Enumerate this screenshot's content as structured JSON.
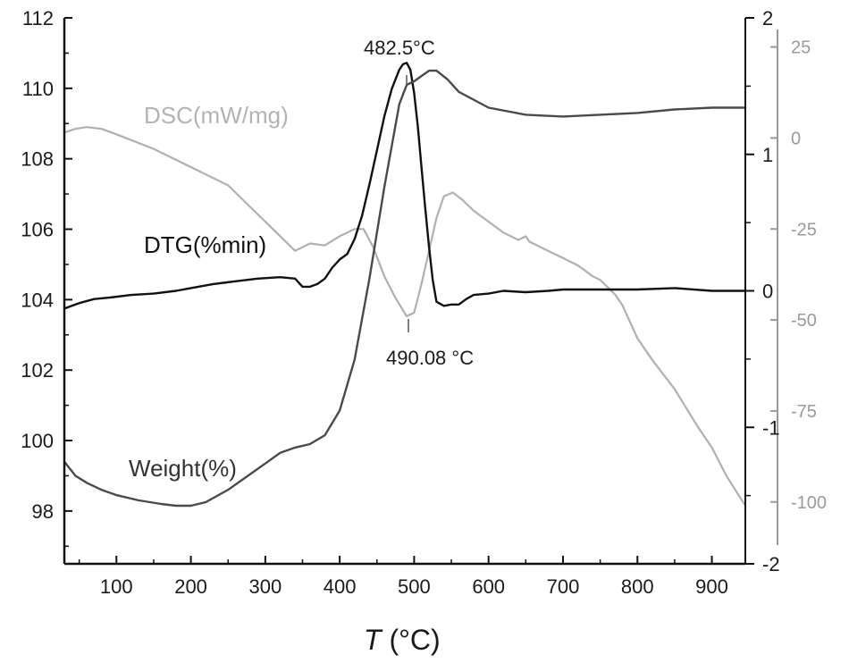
{
  "chart_data": {
    "type": "line",
    "x_axis": {
      "label_italic": "T",
      "label_rest": " (°C)",
      "range": [
        30,
        945
      ],
      "ticks": [
        100,
        200,
        300,
        400,
        500,
        600,
        700,
        800,
        900
      ],
      "tick_labels": [
        "100",
        "200",
        "300",
        "400",
        "500",
        "600",
        "700",
        "800",
        "900"
      ]
    },
    "axes": {
      "left": {
        "range": [
          96.5,
          112
        ],
        "ticks": [
          98,
          100,
          102,
          104,
          106,
          108,
          110,
          112
        ],
        "tick_labels": [
          "98",
          "100",
          "102",
          "104",
          "106",
          "108",
          "110",
          "112"
        ],
        "color": "#1a1a1a"
      },
      "right": {
        "range": [
          -2,
          2
        ],
        "ticks": [
          -2,
          -1,
          0,
          1,
          2
        ],
        "tick_labels": [
          "-2",
          "-1",
          "0",
          "1",
          "2"
        ],
        "color": "#1a1a1a"
      },
      "far_right": {
        "range": [
          -117,
          33
        ],
        "ticks": [
          -100,
          -75,
          -50,
          -25,
          0,
          25
        ],
        "tick_labels": [
          "-100",
          "-75",
          "-50",
          "-25",
          "0",
          "25"
        ],
        "color": "#9a9a9a"
      }
    },
    "series": [
      {
        "name": "DSC(mW/mg)",
        "axis": "far_right",
        "color": "#b0b0b0",
        "x": [
          30,
          45,
          60,
          80,
          100,
          150,
          200,
          250,
          300,
          340,
          360,
          380,
          400,
          420,
          432,
          445,
          460,
          475,
          490,
          500,
          510,
          520,
          530,
          540,
          552,
          565,
          580,
          600,
          620,
          640,
          650,
          655,
          680,
          700,
          720,
          740,
          750,
          760,
          770,
          780,
          800,
          820,
          850,
          880,
          900,
          920,
          945
        ],
        "y": [
          1.5,
          2.5,
          3,
          2.5,
          1,
          -3,
          -8,
          -13,
          -23,
          -31,
          -29,
          -29.5,
          -27,
          -25,
          -25,
          -30,
          -38,
          -44,
          -49,
          -48,
          -40,
          -31,
          -22,
          -16,
          -15,
          -17,
          -20,
          -23,
          -26,
          -28,
          -27,
          -28.5,
          -31,
          -33,
          -35,
          -38,
          -39,
          -41,
          -43,
          -46,
          -55,
          -61,
          -69,
          -79,
          -85,
          -93,
          -101
        ]
      },
      {
        "name": "DTG(%min)",
        "axis": "right",
        "color": "#111111",
        "x": [
          30,
          40,
          50,
          70,
          90,
          120,
          150,
          180,
          200,
          230,
          260,
          290,
          320,
          340,
          350,
          360,
          370,
          380,
          390,
          400,
          410,
          420,
          430,
          440,
          450,
          460,
          470,
          480,
          485,
          490,
          495,
          500,
          505,
          510,
          515,
          520,
          525,
          530,
          540,
          550,
          560,
          570,
          580,
          600,
          620,
          650,
          680,
          700,
          750,
          800,
          850,
          900,
          945
        ],
        "y": [
          -0.13,
          -0.11,
          -0.09,
          -0.06,
          -0.05,
          -0.03,
          -0.02,
          0.0,
          0.02,
          0.05,
          0.07,
          0.09,
          0.1,
          0.09,
          0.03,
          0.03,
          0.05,
          0.09,
          0.17,
          0.23,
          0.27,
          0.38,
          0.55,
          0.78,
          1.03,
          1.28,
          1.48,
          1.62,
          1.66,
          1.67,
          1.62,
          1.45,
          1.2,
          0.9,
          0.6,
          0.32,
          0.08,
          -0.08,
          -0.11,
          -0.1,
          -0.1,
          -0.06,
          -0.03,
          -0.02,
          0.0,
          -0.01,
          0.0,
          0.01,
          0.01,
          0.01,
          0.02,
          0.0,
          0.0
        ]
      },
      {
        "name": "Weight(%)",
        "axis": "left",
        "color": "#4a4a4a",
        "x": [
          30,
          45,
          60,
          80,
          100,
          130,
          160,
          180,
          200,
          220,
          250,
          280,
          300,
          320,
          340,
          360,
          380,
          400,
          420,
          440,
          460,
          480,
          490,
          500,
          510,
          520,
          530,
          545,
          560,
          600,
          650,
          700,
          750,
          800,
          850,
          900,
          945
        ],
        "y": [
          99.4,
          99.0,
          98.8,
          98.6,
          98.45,
          98.3,
          98.2,
          98.15,
          98.15,
          98.25,
          98.6,
          99.05,
          99.35,
          99.65,
          99.8,
          99.9,
          100.15,
          100.85,
          102.3,
          104.6,
          107.2,
          109.55,
          110.1,
          110.2,
          110.35,
          110.5,
          110.5,
          110.25,
          109.9,
          109.45,
          109.25,
          109.2,
          109.25,
          109.3,
          109.4,
          109.45,
          109.45
        ]
      }
    ],
    "annotations": [
      {
        "text": "482.5°C",
        "x": 487,
        "series": "DTG(%min)"
      },
      {
        "text": "490.08 °C",
        "x": 490,
        "series": "DSC(mW/mg)"
      }
    ],
    "grid": false,
    "legend": "inline"
  }
}
